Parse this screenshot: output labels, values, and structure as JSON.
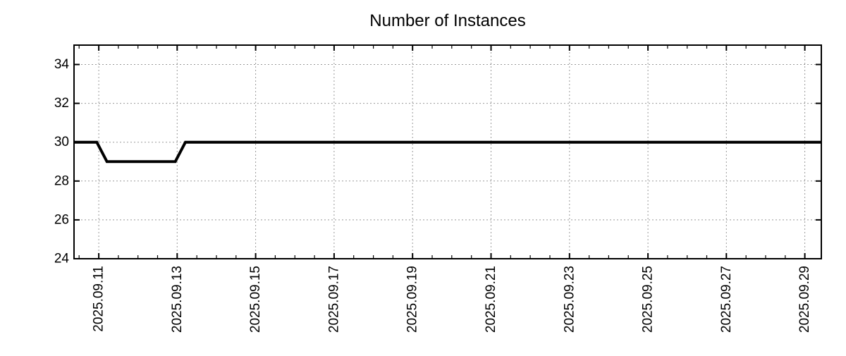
{
  "chart_data": {
    "type": "line",
    "title": "Number of Instances",
    "xlabel": "",
    "ylabel": "",
    "x_unit": "day of 2025-09 (date labels on axis)",
    "x_axis": {
      "range": [
        10.37,
        29.42
      ],
      "minor_tick_step": 0.5,
      "ticks": [
        {
          "label": "2025.09.11",
          "value": 11
        },
        {
          "label": "2025.09.13",
          "value": 13
        },
        {
          "label": "2025.09.15",
          "value": 15
        },
        {
          "label": "2025.09.17",
          "value": 17
        },
        {
          "label": "2025.09.19",
          "value": 19
        },
        {
          "label": "2025.09.21",
          "value": 21
        },
        {
          "label": "2025.09.23",
          "value": 23
        },
        {
          "label": "2025.09.25",
          "value": 25
        },
        {
          "label": "2025.09.27",
          "value": 27
        },
        {
          "label": "2025.09.29",
          "value": 29
        }
      ]
    },
    "y_axis": {
      "range": [
        24,
        35
      ],
      "ticks": [
        {
          "label": "24",
          "value": 24
        },
        {
          "label": "26",
          "value": 26
        },
        {
          "label": "28",
          "value": 28
        },
        {
          "label": "30",
          "value": 30
        },
        {
          "label": "32",
          "value": 32
        },
        {
          "label": "34",
          "value": 34
        }
      ]
    },
    "series": [
      {
        "color": "#000000",
        "line_width": 4,
        "points": [
          [
            10.37,
            30
          ],
          [
            10.95,
            30
          ],
          [
            11.21,
            29
          ],
          [
            12.95,
            29
          ],
          [
            13.21,
            30
          ],
          [
            29.42,
            30
          ]
        ]
      }
    ],
    "grid": {
      "on": true,
      "color": "#999999",
      "style": "dotted"
    },
    "legend": {
      "visible": false
    },
    "axis_color": "#000000",
    "text_color": "#000000",
    "background": "#ffffff"
  }
}
